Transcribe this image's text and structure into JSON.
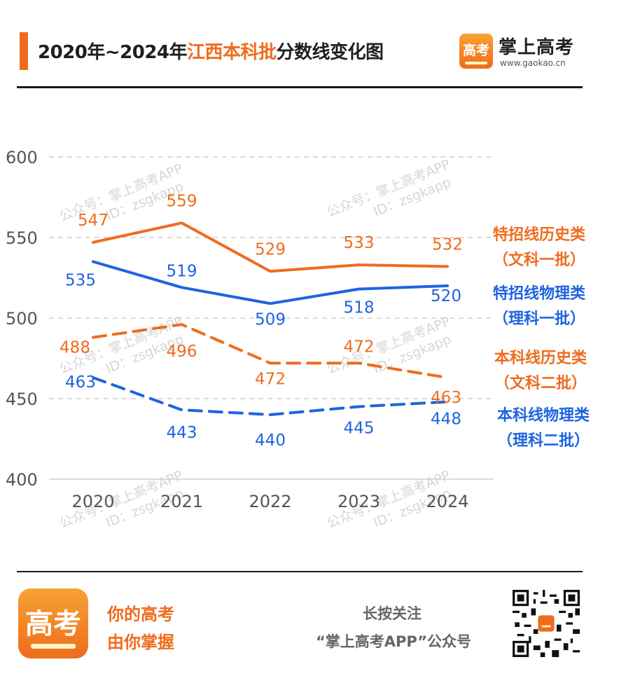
{
  "header": {
    "title_prefix": "2020年~2024年",
    "title_highlight": "江西本科批",
    "title_suffix": "分数线变化图",
    "brand_glyph": "高考",
    "brand_name": "掌上高考",
    "brand_url": "www.gaokao.cn"
  },
  "chart_data": {
    "type": "line",
    "categories": [
      "2020",
      "2021",
      "2022",
      "2023",
      "2024"
    ],
    "ylim": [
      400,
      600
    ],
    "yticks": [
      400,
      450,
      500,
      550,
      600
    ],
    "grid": true,
    "legend_placement": "right",
    "series": [
      {
        "name_line1": "特招线历史类",
        "name_line2": "（文科一批）",
        "values": [
          547,
          559,
          529,
          533,
          532
        ],
        "color": "#ef6c1e",
        "style": "solid"
      },
      {
        "name_line1": "特招线物理类",
        "name_line2": "（理科一批）",
        "values": [
          535,
          519,
          509,
          518,
          520
        ],
        "color": "#1e64e0",
        "style": "solid"
      },
      {
        "name_line1": "本科线历史类",
        "name_line2": "（文科二批）",
        "values": [
          488,
          496,
          472,
          472,
          463
        ],
        "color": "#ef6c1e",
        "style": "dashed"
      },
      {
        "name_line1": "本科线物理类",
        "name_line2": "（理科二批）",
        "values": [
          463,
          443,
          440,
          445,
          448
        ],
        "color": "#1e64e0",
        "style": "dashed"
      }
    ]
  },
  "watermark": {
    "line1": "公众号：掌上高考APP",
    "line2": "ID：zsgkapp"
  },
  "footer": {
    "logo_glyph": "高考",
    "slogan_line1": "你的高考",
    "slogan_line2": "由你掌握",
    "follow_line1": "长按关注",
    "follow_line2": "“掌上高考APP”公众号"
  }
}
